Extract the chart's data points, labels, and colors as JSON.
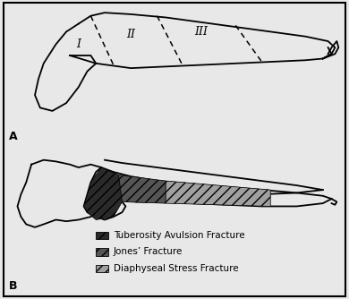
{
  "background_color": "#e8e8e8",
  "border_color": "#000000",
  "label_A": "A",
  "label_B": "B",
  "zone_labels": [
    "I",
    "II",
    "III"
  ],
  "legend_items": [
    {
      "label": "Tuberosity Avulsion Fracture",
      "color": "#282828"
    },
    {
      "label": "Jones’ Fracture",
      "color": "#555555"
    },
    {
      "label": "Diaphyseal Stress Fracture",
      "color": "#aaaaaa"
    }
  ],
  "font_size_labels": 9,
  "font_size_zones": 9,
  "font_size_legend": 7.5
}
